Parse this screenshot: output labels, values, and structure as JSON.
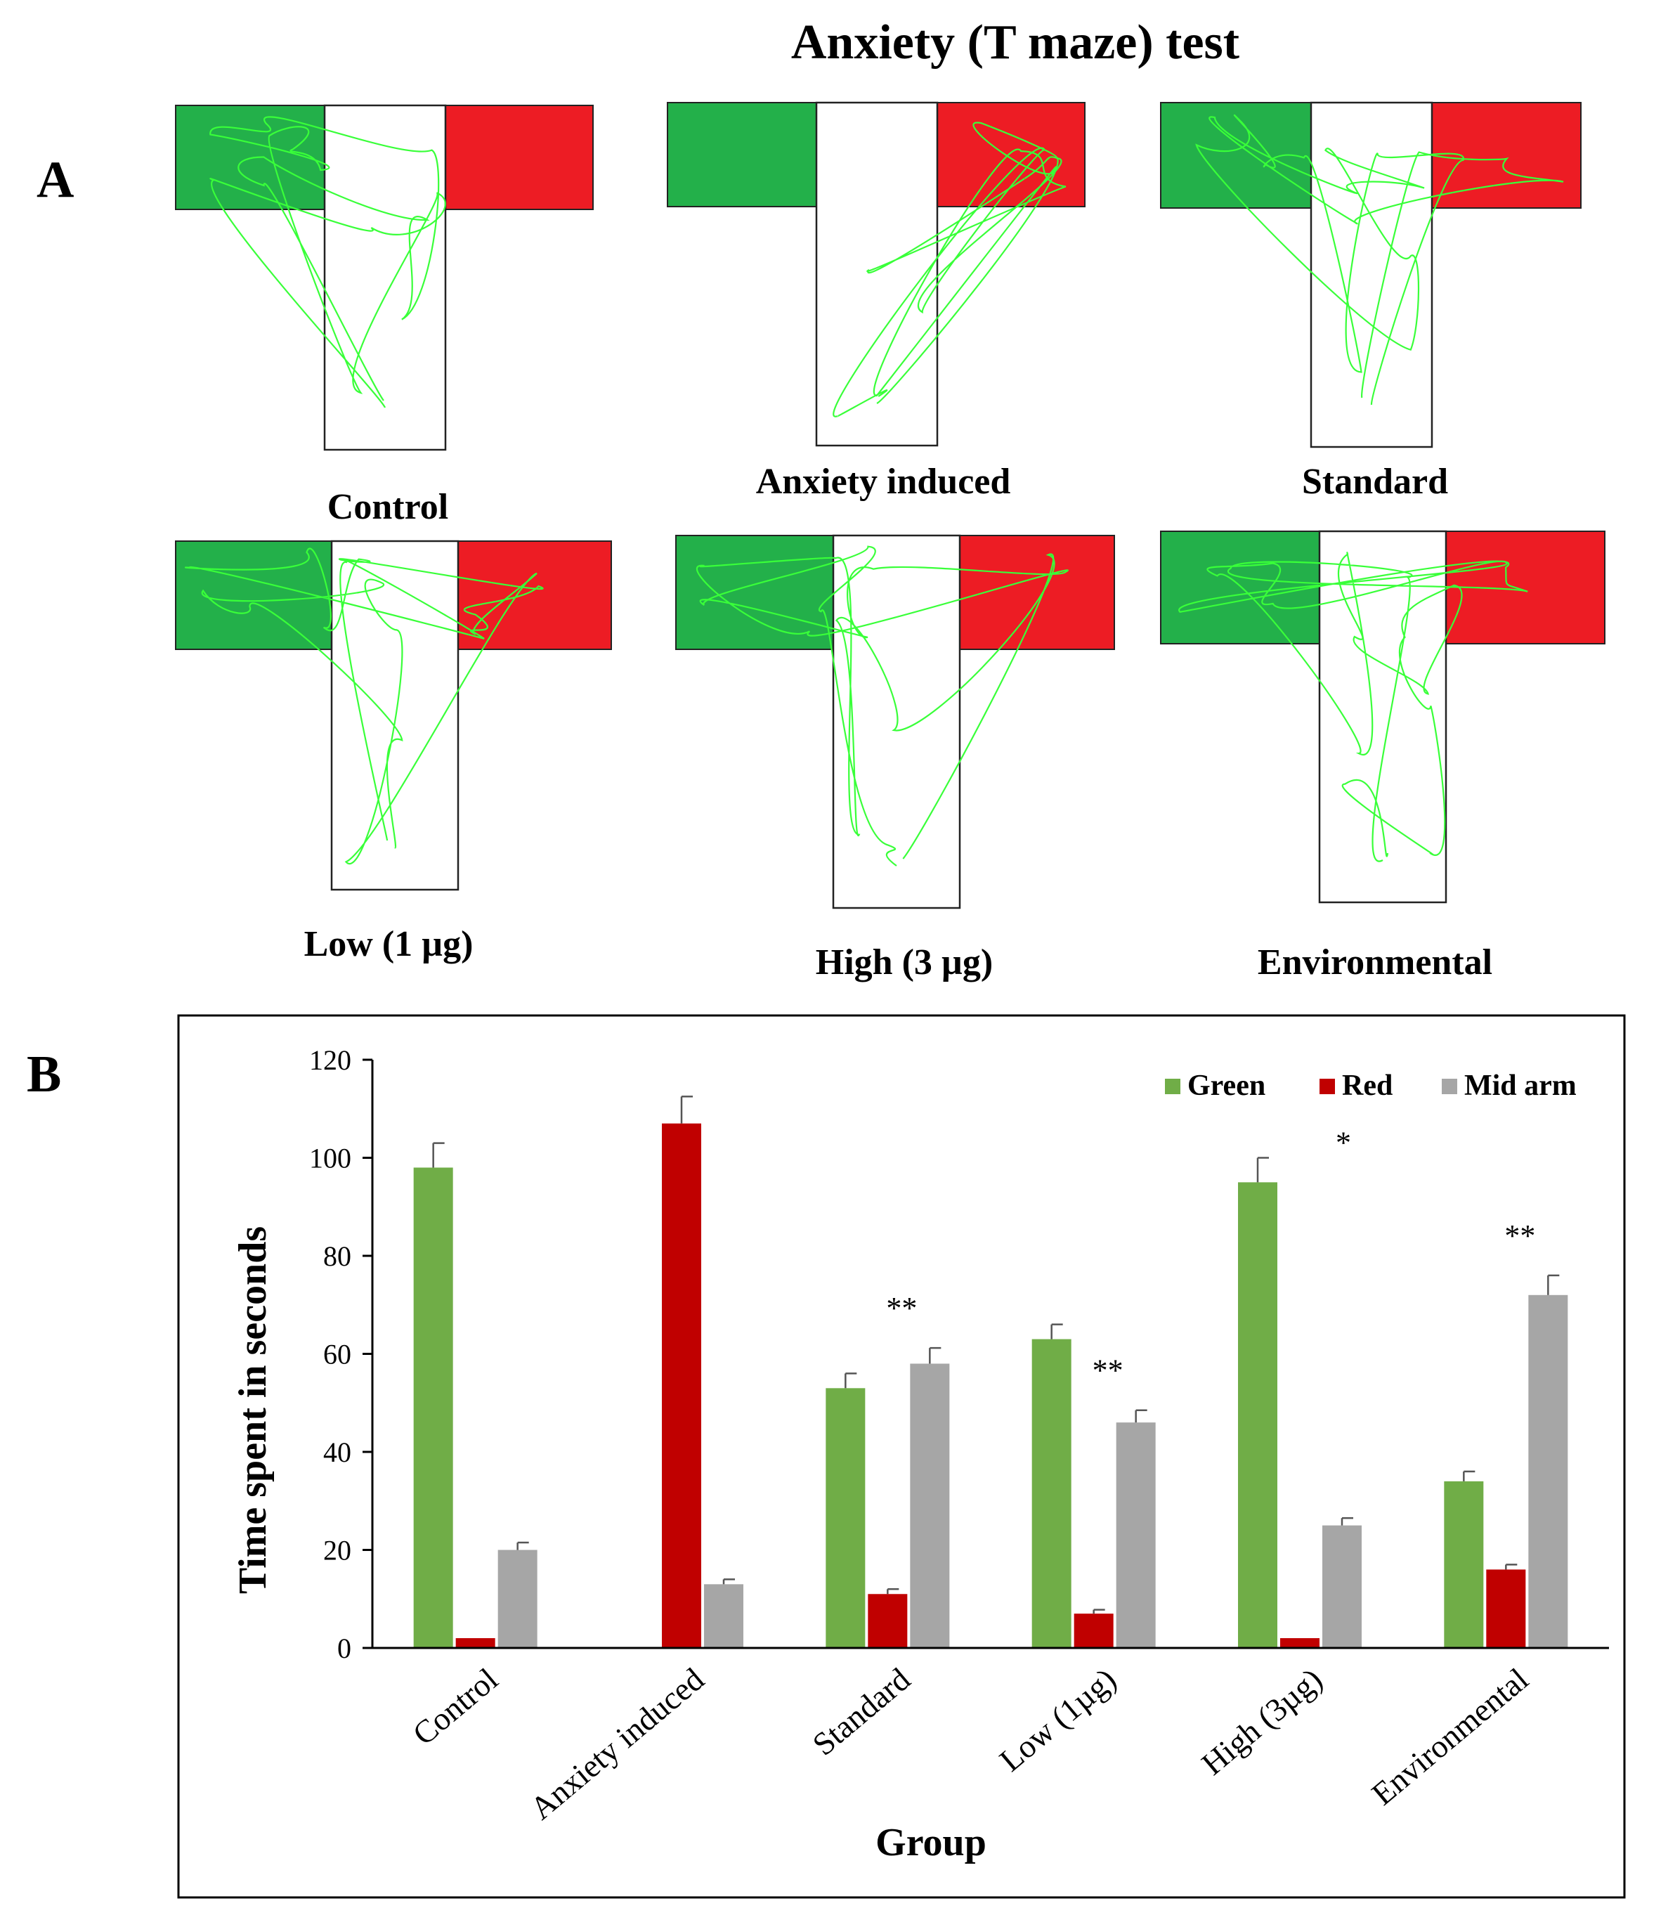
{
  "figure": {
    "title": "Anxiety (T maze) test",
    "panel_a_letter": "A",
    "panel_b_letter": "B"
  },
  "mazes": [
    {
      "label": "Control",
      "zone_bias": "green"
    },
    {
      "label": "Anxiety induced",
      "zone_bias": "red"
    },
    {
      "label": "Standard",
      "zone_bias": "mixed"
    },
    {
      "label": "Low (1 µg)",
      "zone_bias": "mixed"
    },
    {
      "label": "High (3 µg)",
      "zone_bias": "green"
    },
    {
      "label": "Environmental",
      "zone_bias": "mid"
    }
  ],
  "colors": {
    "green_zone": "#23b04a",
    "red_zone": "#ed1c24",
    "track": "#39ff39",
    "bar_green": "#70ad47",
    "bar_red": "#c00000",
    "bar_grey": "#a6a6a6"
  },
  "chart_data": {
    "type": "bar",
    "xlabel": "Group",
    "ylabel": "Time spent in seconds",
    "ylim": [
      0,
      120
    ],
    "yticks": [
      0,
      20,
      40,
      60,
      80,
      100,
      120
    ],
    "categories": [
      "Control",
      "Anxiety induced",
      "Standard",
      "Low (1µg)",
      "High (3µg)",
      "Environmental"
    ],
    "series": [
      {
        "name": "Green",
        "color": "#70ad47",
        "values": [
          98,
          0,
          53,
          63,
          95,
          34
        ],
        "errors": [
          5,
          0,
          3,
          3,
          5,
          2
        ]
      },
      {
        "name": "Red",
        "color": "#c00000",
        "values": [
          2,
          107,
          11,
          7,
          2,
          16
        ],
        "errors": [
          0,
          5.5,
          1,
          0.8,
          0,
          1
        ]
      },
      {
        "name": "Mid arm",
        "color": "#a6a6a6",
        "values": [
          20,
          13,
          58,
          46,
          25,
          72
        ],
        "errors": [
          1.5,
          1,
          3.2,
          2.5,
          1.5,
          4
        ]
      }
    ],
    "annotations": [
      "",
      "",
      "**",
      "**",
      "*",
      "**"
    ],
    "legend_position": "top-right"
  }
}
